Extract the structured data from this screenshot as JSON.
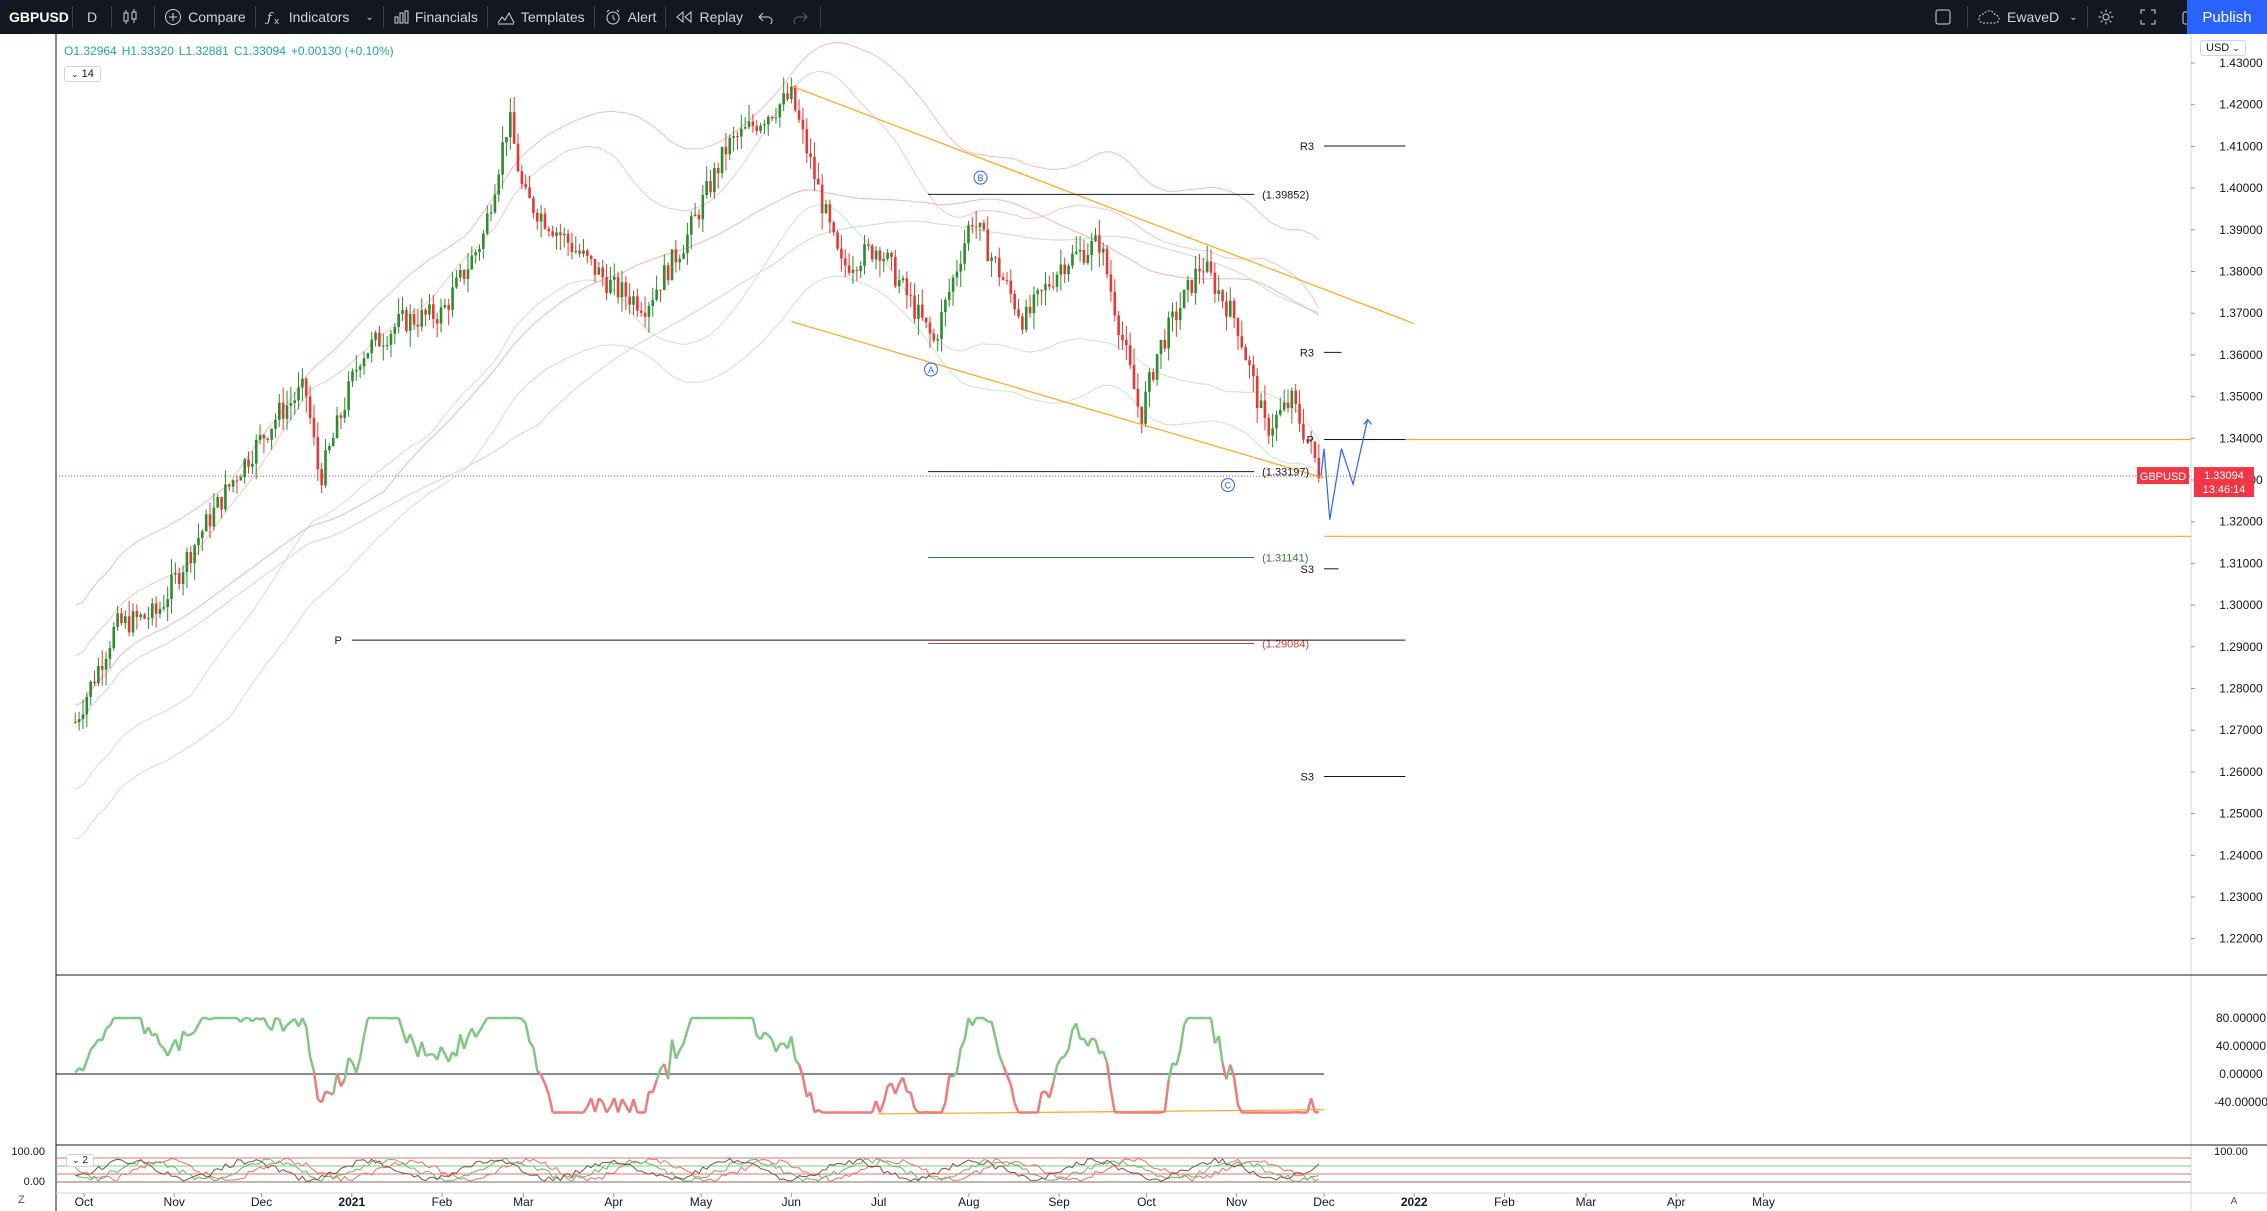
{
  "toolbar": {
    "symbol": "GBPUSD",
    "interval": "D",
    "compare": "Compare",
    "indicators": "Indicators",
    "financials": "Financials",
    "templates": "Templates",
    "alert": "Alert",
    "replay": "Replay",
    "layout_name": "EwaveD",
    "publish": "Publish"
  },
  "legend": {
    "open": "O1.32964",
    "high": "H1.33320",
    "low": "L1.32881",
    "close": "C1.33094",
    "change": "+0.00130 (+0.10%)",
    "sub_pane_1": "14",
    "sub_pane_2": "2"
  },
  "currency": "USD",
  "bottom": {
    "z": "Z",
    "a": "A"
  },
  "colors": {
    "up": "#2e8b2e",
    "down": "#e53935",
    "publish": "#2962ff",
    "channel": "#ffa726",
    "price_label": "#f23645"
  },
  "chart_data": [
    {
      "type": "candlestick",
      "symbol": "GBPUSD",
      "interval": "D",
      "x_ticks": [
        "Oct",
        "Nov",
        "Dec",
        "2021",
        "Feb",
        "Mar",
        "Apr",
        "May",
        "Jun",
        "Jul",
        "Aug",
        "Sep",
        "Oct",
        "Nov",
        "Dec",
        "2022",
        "Feb",
        "Mar",
        "Apr",
        "May"
      ],
      "y_ticks": [
        "1.43000",
        "1.42000",
        "1.41000",
        "1.40000",
        "1.39000",
        "1.38000",
        "1.37000",
        "1.36000",
        "1.35000",
        "1.34000",
        "1.33000",
        "1.32000",
        "1.31000",
        "1.30000",
        "1.29000",
        "1.28000",
        "1.27000",
        "1.26000",
        "1.25000",
        "1.24000",
        "1.23000",
        "1.22000"
      ],
      "ylim": [
        1.217,
        1.439
      ],
      "last_price": {
        "symbol": "GBPUSD",
        "value": "1.33094",
        "countdown": "13:46:14"
      },
      "close_path": [
        {
          "t": "2020-09-28",
          "v": 1.272
        },
        {
          "t": "2020-10-12",
          "v": 1.295
        },
        {
          "t": "2020-10-26",
          "v": 1.298
        },
        {
          "t": "2020-11-09",
          "v": 1.316
        },
        {
          "t": "2020-11-23",
          "v": 1.332
        },
        {
          "t": "2020-12-07",
          "v": 1.346
        },
        {
          "t": "2020-12-16",
          "v": 1.352
        },
        {
          "t": "2020-12-21",
          "v": 1.33
        },
        {
          "t": "2021-01-04",
          "v": 1.36
        },
        {
          "t": "2021-01-18",
          "v": 1.368
        },
        {
          "t": "2021-02-01",
          "v": 1.37
        },
        {
          "t": "2021-02-15",
          "v": 1.388
        },
        {
          "t": "2021-02-24",
          "v": 1.417
        },
        {
          "t": "2021-03-01",
          "v": 1.398
        },
        {
          "t": "2021-03-15",
          "v": 1.388
        },
        {
          "t": "2021-04-01",
          "v": 1.376
        },
        {
          "t": "2021-04-12",
          "v": 1.372
        },
        {
          "t": "2021-04-26",
          "v": 1.388
        },
        {
          "t": "2021-05-10",
          "v": 1.41
        },
        {
          "t": "2021-05-24",
          "v": 1.418
        },
        {
          "t": "2021-06-01",
          "v": 1.422
        },
        {
          "t": "2021-06-18",
          "v": 1.381
        },
        {
          "t": "2021-07-01",
          "v": 1.386
        },
        {
          "t": "2021-07-20",
          "v": 1.363
        },
        {
          "t": "2021-08-02",
          "v": 1.393
        },
        {
          "t": "2021-08-20",
          "v": 1.368
        },
        {
          "t": "2021-09-02",
          "v": 1.382
        },
        {
          "t": "2021-09-15",
          "v": 1.387
        },
        {
          "t": "2021-09-29",
          "v": 1.345
        },
        {
          "t": "2021-10-05",
          "v": 1.361
        },
        {
          "t": "2021-10-20",
          "v": 1.382
        },
        {
          "t": "2021-11-01",
          "v": 1.368
        },
        {
          "t": "2021-11-11",
          "v": 1.342
        },
        {
          "t": "2021-11-20",
          "v": 1.349
        },
        {
          "t": "2021-11-30",
          "v": 1.331
        }
      ],
      "annotations": {
        "wave_labels": [
          {
            "label": "A"
          },
          {
            "label": "B"
          },
          {
            "label": "C"
          }
        ],
        "fib_levels": [
          "(1.39852)",
          "(1.33197)",
          "(1.31141)",
          "(1.29084)"
        ],
        "pivot_labels": [
          "R3",
          "R3",
          "P",
          "P",
          "S3",
          "S3"
        ]
      }
    },
    {
      "type": "line",
      "name": "oscillator",
      "y_ticks": [
        "80.00000",
        "40.00000",
        "0.00000",
        "-40.00000"
      ],
      "ylim": [
        -55,
        90
      ]
    },
    {
      "type": "line",
      "name": "oscillator-2",
      "y_ticks": [
        "100.00",
        "0.00"
      ],
      "y_ticks_right": [
        "100.00"
      ]
    }
  ]
}
